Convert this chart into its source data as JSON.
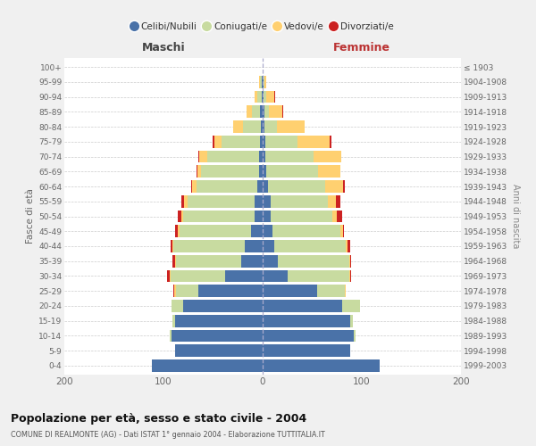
{
  "age_groups": [
    "0-4",
    "5-9",
    "10-14",
    "15-19",
    "20-24",
    "25-29",
    "30-34",
    "35-39",
    "40-44",
    "45-49",
    "50-54",
    "55-59",
    "60-64",
    "65-69",
    "70-74",
    "75-79",
    "80-84",
    "85-89",
    "90-94",
    "95-99",
    "100+"
  ],
  "birth_years": [
    "1999-2003",
    "1994-1998",
    "1989-1993",
    "1984-1988",
    "1979-1983",
    "1974-1978",
    "1969-1973",
    "1964-1968",
    "1959-1963",
    "1954-1958",
    "1949-1953",
    "1944-1948",
    "1939-1943",
    "1934-1938",
    "1929-1933",
    "1924-1928",
    "1919-1923",
    "1914-1918",
    "1909-1913",
    "1904-1908",
    "≤ 1903"
  ],
  "maschi": {
    "celibi": [
      112,
      88,
      92,
      88,
      80,
      65,
      38,
      22,
      18,
      12,
      8,
      8,
      5,
      4,
      4,
      3,
      2,
      3,
      1,
      1,
      0
    ],
    "coniugati": [
      0,
      0,
      2,
      3,
      12,
      22,
      55,
      65,
      72,
      72,
      72,
      68,
      62,
      58,
      52,
      38,
      18,
      8,
      4,
      2,
      0
    ],
    "vedovi": [
      0,
      0,
      0,
      0,
      0,
      2,
      1,
      1,
      1,
      2,
      2,
      3,
      4,
      4,
      8,
      8,
      10,
      5,
      3,
      1,
      0
    ],
    "divorziati": [
      0,
      0,
      0,
      0,
      0,
      1,
      2,
      3,
      2,
      2,
      4,
      3,
      1,
      1,
      1,
      1,
      0,
      0,
      0,
      0,
      0
    ]
  },
  "femmine": {
    "nubili": [
      118,
      88,
      92,
      88,
      80,
      55,
      25,
      15,
      12,
      10,
      8,
      8,
      5,
      4,
      3,
      3,
      2,
      2,
      1,
      1,
      0
    ],
    "coniugate": [
      0,
      0,
      2,
      3,
      18,
      28,
      62,
      72,
      72,
      68,
      62,
      58,
      58,
      52,
      48,
      32,
      12,
      4,
      3,
      1,
      0
    ],
    "vedove": [
      0,
      0,
      0,
      0,
      0,
      1,
      1,
      1,
      2,
      3,
      5,
      8,
      18,
      22,
      28,
      33,
      28,
      14,
      8,
      2,
      0
    ],
    "divorziate": [
      0,
      0,
      0,
      0,
      0,
      0,
      1,
      1,
      2,
      1,
      5,
      4,
      2,
      0,
      0,
      1,
      0,
      1,
      1,
      0,
      0
    ]
  },
  "colors": {
    "celibi": "#4a72a8",
    "coniugati": "#c8dba0",
    "vedovi": "#ffd070",
    "divorziati": "#cc2222"
  },
  "xlim": 200,
  "title": "Popolazione per età, sesso e stato civile - 2004",
  "subtitle": "COMUNE DI REALMONTE (AG) - Dati ISTAT 1° gennaio 2004 - Elaborazione TUTTITALIA.IT",
  "ylabel_left": "Fasce di età",
  "ylabel_right": "Anni di nascita",
  "xlabel_left": "Maschi",
  "xlabel_right": "Femmine",
  "bg_color": "#f0f0f0",
  "plot_bg_color": "#ffffff",
  "legend_labels": [
    "Celibi/Nubili",
    "Coniugati/e",
    "Vedovi/e",
    "Divorziati/e"
  ]
}
